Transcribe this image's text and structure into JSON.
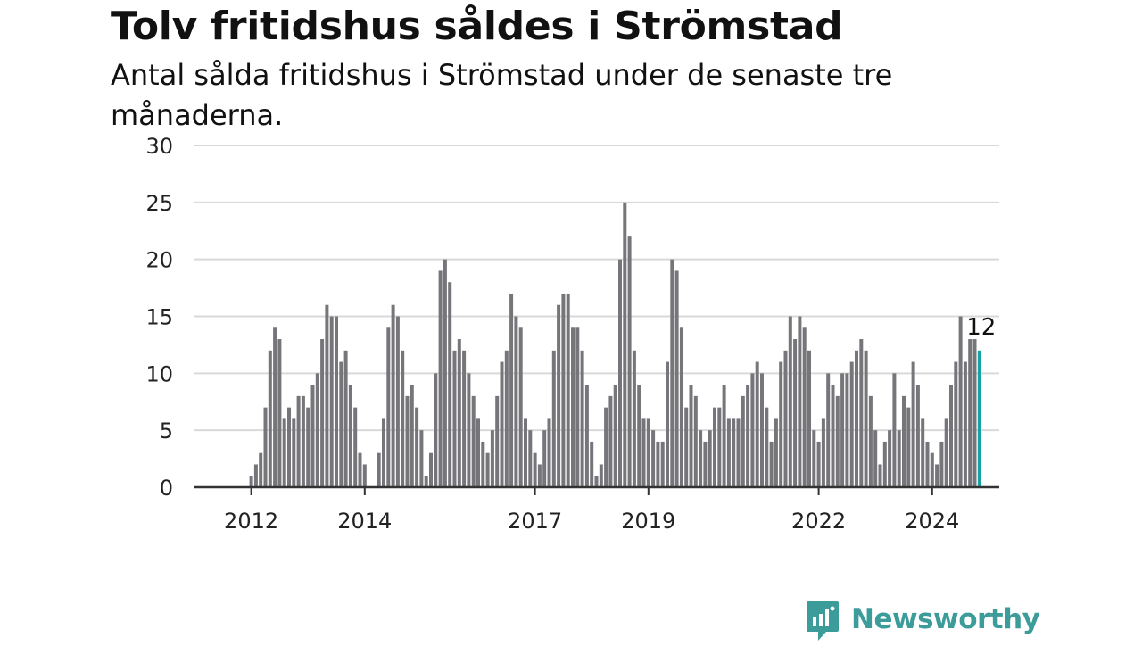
{
  "header": {
    "title": "Tolv fritidshus såldes i Strömstad",
    "subtitle": "Antal sålda fritidshus i Strömstad under de senaste tre månaderna."
  },
  "logo": {
    "text": "Newsworthy",
    "color": "#3c9c9a",
    "icon": "chat-bar-chart-icon"
  },
  "colors": {
    "bar": "#76757a",
    "highlight": "#17a3a3",
    "grid": "#d9d9d9",
    "axis": "#333333"
  },
  "chart_data": {
    "type": "bar",
    "title": "Tolv fritidshus såldes i Strömstad",
    "subtitle": "Antal sålda fritidshus i Strömstad under de senaste tre månaderna.",
    "xlabel": "",
    "ylabel": "",
    "ylim": [
      0,
      30
    ],
    "yticks": [
      0,
      5,
      10,
      15,
      20,
      25,
      30
    ],
    "grid": true,
    "x_start": "2011-01",
    "x_tick_labels": [
      {
        "label": "2012",
        "month": "2012-01"
      },
      {
        "label": "2014",
        "month": "2014-01"
      },
      {
        "label": "2017",
        "month": "2017-01"
      },
      {
        "label": "2019",
        "month": "2019-01"
      },
      {
        "label": "2022",
        "month": "2022-01"
      },
      {
        "label": "2024",
        "month": "2024-01"
      }
    ],
    "values": [
      0,
      0,
      0,
      0,
      0,
      0,
      0,
      0,
      0,
      0,
      0,
      0,
      1,
      2,
      3,
      7,
      12,
      14,
      13,
      6,
      7,
      6,
      8,
      8,
      7,
      9,
      10,
      13,
      16,
      15,
      15,
      11,
      12,
      9,
      7,
      3,
      2,
      0,
      0,
      3,
      6,
      14,
      16,
      15,
      12,
      8,
      9,
      7,
      5,
      1,
      3,
      10,
      19,
      20,
      18,
      12,
      13,
      12,
      10,
      8,
      6,
      4,
      3,
      5,
      8,
      11,
      12,
      17,
      15,
      14,
      6,
      5,
      3,
      2,
      5,
      6,
      12,
      16,
      17,
      17,
      14,
      14,
      12,
      9,
      4,
      1,
      2,
      7,
      8,
      9,
      20,
      25,
      22,
      12,
      9,
      6,
      6,
      5,
      4,
      4,
      11,
      20,
      19,
      14,
      7,
      9,
      8,
      5,
      4,
      5,
      7,
      7,
      9,
      6,
      6,
      6,
      8,
      9,
      10,
      11,
      10,
      7,
      4,
      6,
      11,
      12,
      15,
      13,
      15,
      14,
      12,
      5,
      4,
      6,
      10,
      9,
      8,
      10,
      10,
      11,
      12,
      13,
      12,
      8,
      5,
      2,
      4,
      5,
      10,
      5,
      8,
      7,
      11,
      9,
      6,
      4,
      3,
      2,
      4,
      6,
      9,
      11,
      15,
      11,
      13,
      13,
      12
    ],
    "highlight_last": true,
    "last_value_label": "12"
  }
}
